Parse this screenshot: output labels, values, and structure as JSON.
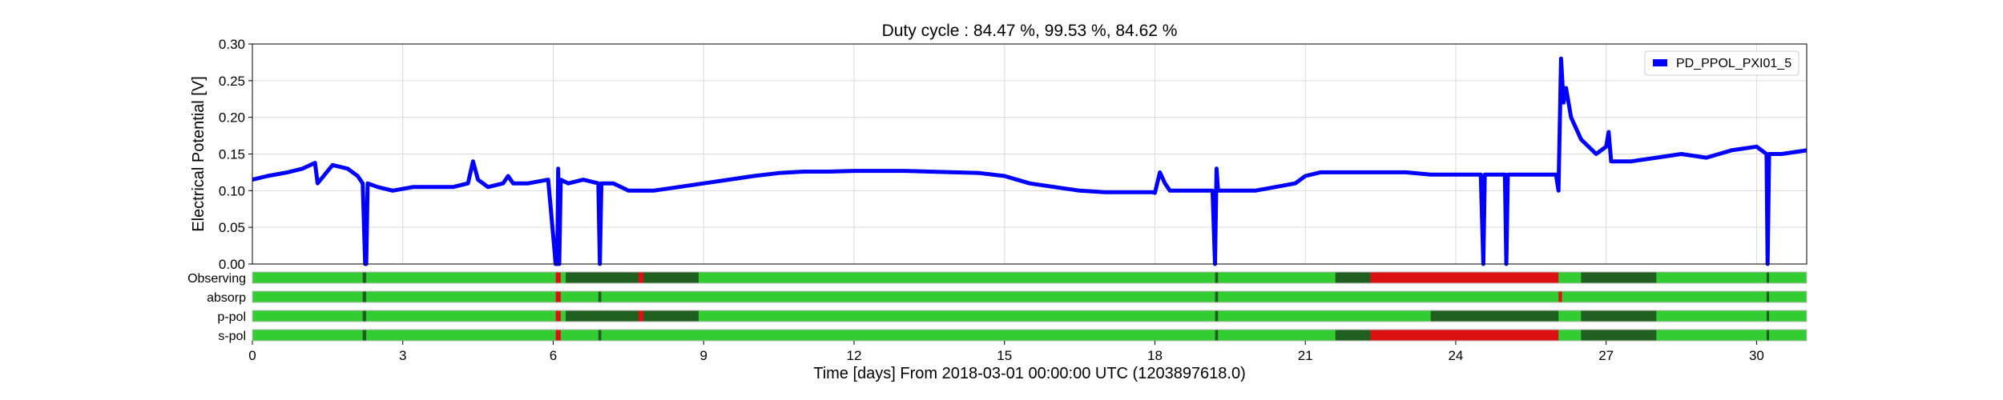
{
  "chart_data": {
    "type": "line",
    "title": "Duty cycle : 84.47 %, 99.53 %, 84.62 %",
    "xlabel": "Time [days] From 2018-03-01 00:00:00 UTC (1203897618.0)",
    "ylabel": "Electrical Potential [V]",
    "xlim": [
      0,
      31
    ],
    "ylim": [
      0,
      0.3
    ],
    "x_ticks": [
      0,
      3,
      6,
      9,
      12,
      15,
      18,
      21,
      24,
      27,
      30
    ],
    "x_tick_labels": [
      "0",
      "3",
      "6",
      "9",
      "12",
      "15",
      "18",
      "21",
      "24",
      "27",
      "30"
    ],
    "y_ticks": [
      0,
      0.05,
      0.1,
      0.15,
      0.2,
      0.25,
      0.3
    ],
    "y_tick_labels": [
      "0.00",
      "0.05",
      "0.10",
      "0.15",
      "0.20",
      "0.25",
      "0.30"
    ],
    "grid": true,
    "legend_position": "top-right",
    "series": [
      {
        "name": "PD_PPOL_PXI01_5",
        "color": "#0000ff",
        "x": [
          0,
          0.3,
          0.7,
          1.0,
          1.25,
          1.3,
          1.6,
          1.9,
          2.1,
          2.2,
          2.25,
          2.27,
          2.3,
          2.5,
          2.8,
          3.2,
          3.6,
          4.0,
          4.3,
          4.4,
          4.5,
          4.7,
          5.0,
          5.1,
          5.2,
          5.5,
          5.9,
          6.05,
          6.08,
          6.1,
          6.12,
          6.15,
          6.3,
          6.6,
          6.9,
          6.93,
          6.96,
          7.2,
          7.5,
          7.8,
          8.0,
          8.5,
          9.0,
          9.5,
          10.0,
          10.5,
          11.0,
          11.5,
          12.0,
          12.5,
          13.0,
          13.5,
          14.0,
          14.5,
          15.0,
          15.5,
          16.0,
          16.5,
          17.0,
          17.5,
          17.95,
          18.0,
          18.1,
          18.2,
          18.3,
          18.5,
          18.8,
          19.15,
          19.2,
          19.23,
          19.26,
          19.3,
          19.6,
          20.0,
          20.4,
          20.8,
          21.0,
          21.3,
          21.6,
          22.0,
          22.5,
          23.0,
          23.5,
          24.0,
          24.5,
          24.55,
          24.58,
          24.62,
          24.8,
          24.98,
          25.01,
          25.04,
          25.5,
          26.0,
          26.05,
          26.1,
          26.15,
          26.2,
          26.3,
          26.5,
          26.8,
          27.0,
          27.05,
          27.1,
          27.5,
          28.0,
          28.5,
          29.0,
          29.5,
          30.0,
          30.2,
          30.22,
          30.25,
          30.5,
          31.0
        ],
        "values": [
          0.115,
          0.12,
          0.125,
          0.13,
          0.138,
          0.11,
          0.135,
          0.13,
          0.12,
          0.11,
          0.0,
          0.0,
          0.11,
          0.105,
          0.1,
          0.105,
          0.105,
          0.105,
          0.11,
          0.14,
          0.115,
          0.105,
          0.11,
          0.12,
          0.11,
          0.11,
          0.115,
          0.0,
          0.0,
          0.13,
          0.0,
          0.115,
          0.11,
          0.115,
          0.11,
          0.0,
          0.11,
          0.11,
          0.1,
          0.1,
          0.1,
          0.105,
          0.11,
          0.115,
          0.12,
          0.124,
          0.126,
          0.126,
          0.127,
          0.127,
          0.127,
          0.126,
          0.125,
          0.124,
          0.12,
          0.11,
          0.105,
          0.1,
          0.098,
          0.098,
          0.098,
          0.097,
          0.125,
          0.11,
          0.1,
          0.1,
          0.1,
          0.1,
          0.0,
          0.13,
          0.1,
          0.1,
          0.1,
          0.1,
          0.105,
          0.11,
          0.12,
          0.125,
          0.125,
          0.125,
          0.125,
          0.125,
          0.122,
          0.122,
          0.122,
          0.0,
          0.122,
          0.122,
          0.122,
          0.122,
          0.0,
          0.122,
          0.122,
          0.122,
          0.1,
          0.28,
          0.22,
          0.24,
          0.2,
          0.17,
          0.15,
          0.16,
          0.18,
          0.14,
          0.14,
          0.145,
          0.15,
          0.145,
          0.155,
          0.16,
          0.15,
          0.0,
          0.15,
          0.15,
          0.155
        ]
      }
    ],
    "segment_rows": {
      "colors": {
        "on": "#33cc33",
        "partial": "#1f5f1f",
        "off": "#dd1111"
      },
      "rows": [
        {
          "label": "Observing",
          "segments": [
            {
              "start": 2.2,
              "end": 2.27,
              "state": "partial"
            },
            {
              "start": 6.05,
              "end": 6.15,
              "state": "off"
            },
            {
              "start": 6.25,
              "end": 8.9,
              "state": "partial"
            },
            {
              "start": 7.7,
              "end": 7.8,
              "state": "off"
            },
            {
              "start": 19.2,
              "end": 19.26,
              "state": "partial"
            },
            {
              "start": 21.6,
              "end": 22.3,
              "state": "partial"
            },
            {
              "start": 22.3,
              "end": 26.05,
              "state": "off"
            },
            {
              "start": 26.5,
              "end": 28.0,
              "state": "partial"
            },
            {
              "start": 30.2,
              "end": 30.25,
              "state": "partial"
            }
          ]
        },
        {
          "label": "absorp",
          "segments": [
            {
              "start": 2.2,
              "end": 2.27,
              "state": "partial"
            },
            {
              "start": 6.05,
              "end": 6.15,
              "state": "off"
            },
            {
              "start": 6.9,
              "end": 6.96,
              "state": "partial"
            },
            {
              "start": 19.2,
              "end": 19.26,
              "state": "partial"
            },
            {
              "start": 26.05,
              "end": 26.12,
              "state": "off"
            },
            {
              "start": 30.2,
              "end": 30.25,
              "state": "partial"
            }
          ]
        },
        {
          "label": "p-pol",
          "segments": [
            {
              "start": 2.2,
              "end": 2.27,
              "state": "partial"
            },
            {
              "start": 6.05,
              "end": 6.15,
              "state": "off"
            },
            {
              "start": 6.25,
              "end": 8.9,
              "state": "partial"
            },
            {
              "start": 7.7,
              "end": 7.8,
              "state": "off"
            },
            {
              "start": 19.2,
              "end": 19.26,
              "state": "partial"
            },
            {
              "start": 23.5,
              "end": 26.05,
              "state": "partial"
            },
            {
              "start": 26.5,
              "end": 28.0,
              "state": "partial"
            },
            {
              "start": 30.2,
              "end": 30.25,
              "state": "partial"
            }
          ]
        },
        {
          "label": "s-pol",
          "segments": [
            {
              "start": 2.2,
              "end": 2.27,
              "state": "partial"
            },
            {
              "start": 6.05,
              "end": 6.15,
              "state": "off"
            },
            {
              "start": 6.9,
              "end": 6.96,
              "state": "partial"
            },
            {
              "start": 19.2,
              "end": 19.26,
              "state": "partial"
            },
            {
              "start": 21.6,
              "end": 22.3,
              "state": "partial"
            },
            {
              "start": 22.3,
              "end": 26.05,
              "state": "off"
            },
            {
              "start": 26.5,
              "end": 28.0,
              "state": "partial"
            },
            {
              "start": 30.2,
              "end": 30.25,
              "state": "partial"
            }
          ]
        }
      ]
    }
  }
}
